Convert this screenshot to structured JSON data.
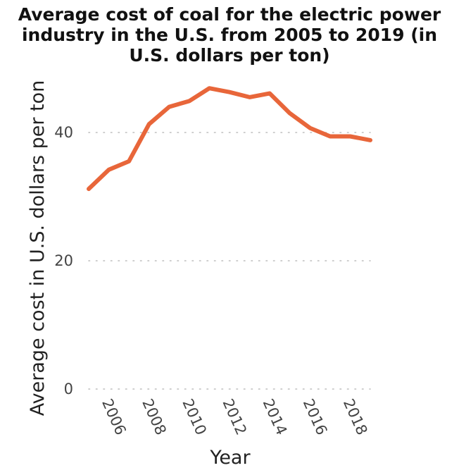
{
  "chart_data": {
    "type": "line",
    "title_lines": [
      "Average cost of coal for the electric power",
      "industry in the U.S. from 2005 to 2019 (in",
      "U.S. dollars per ton)"
    ],
    "xlabel": "Year",
    "ylabel": "Average cost in U.S. dollars per ton",
    "xlim": [
      2005,
      2019
    ],
    "ylim": [
      0,
      50
    ],
    "xticks": [
      2006,
      2008,
      2010,
      2012,
      2014,
      2016,
      2018
    ],
    "yticks": [
      0,
      20,
      40
    ],
    "grid": "horizontal-dotted",
    "legend": "none",
    "series": [
      {
        "color": "#e8663a",
        "x": [
          2005,
          2006,
          2007,
          2008,
          2009,
          2010,
          2011,
          2012,
          2013,
          2014,
          2015,
          2016,
          2017,
          2018,
          2019
        ],
        "y": [
          31.2,
          34.2,
          35.5,
          41.3,
          44.0,
          44.9,
          46.9,
          46.3,
          45.5,
          46.1,
          43.0,
          40.7,
          39.4,
          39.4,
          38.8
        ]
      }
    ]
  }
}
